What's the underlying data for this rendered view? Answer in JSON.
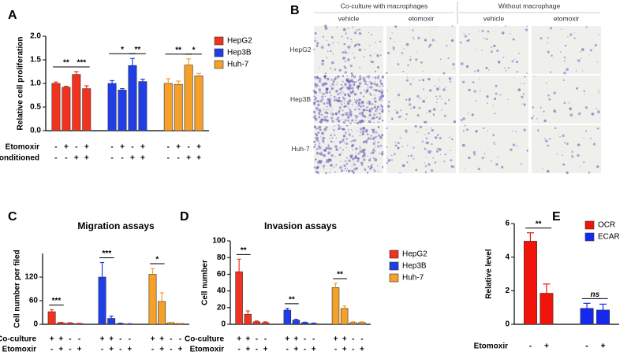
{
  "micrographs": {
    "label": "B",
    "groups": [
      "Co-culture with macrophages",
      "Without macrophage"
    ],
    "columns": [
      "vehicle",
      "etomoxir",
      "vehicle",
      "etomoxir"
    ],
    "rows": [
      "HepG2",
      "Hep3B",
      "Huh-7"
    ]
  },
  "chart_data": [
    {
      "type": "bar",
      "label": "A",
      "ylabel": "Relative cell proliferation",
      "ylim": [
        0,
        2
      ],
      "yticks": [
        {
          "value": 0,
          "label": "0.0"
        },
        0.5,
        {
          "value": 1,
          "label": "1.0"
        },
        1.5,
        {
          "value": 2,
          "label": "2.0"
        }
      ],
      "legend": "right",
      "series": [
        {
          "name": "HepG2",
          "color": "#f0321e",
          "values": [
            1.0,
            0.92,
            1.19,
            0.89
          ],
          "errors": [
            0.03,
            0.02,
            0.06,
            0.06
          ]
        },
        {
          "name": "Hep3B",
          "color": "#1f3ee6",
          "values": [
            1.0,
            0.86,
            1.38,
            1.04
          ],
          "errors": [
            0.06,
            0.03,
            0.15,
            0.05
          ]
        },
        {
          "name": "Huh-7",
          "color": "#f5a028",
          "values": [
            1.0,
            0.98,
            1.39,
            1.16
          ],
          "errors": [
            0.1,
            0.07,
            0.13,
            0.05
          ]
        }
      ],
      "conditions": [
        {
          "name": "Etomoxir",
          "signs": [
            "-",
            "+",
            "-",
            "+"
          ]
        },
        {
          "name": "Conditioned",
          "signs": [
            "-",
            "-",
            "+",
            "+"
          ]
        }
      ],
      "significance": [
        {
          "label": "**",
          "series": 0,
          "between": [
            0,
            2
          ]
        },
        {
          "label": "***",
          "series": 0,
          "between": [
            2,
            3
          ]
        },
        {
          "label": "*",
          "series": 1,
          "between": [
            0,
            2
          ]
        },
        {
          "label": "**",
          "series": 1,
          "between": [
            2,
            3
          ]
        },
        {
          "label": "**",
          "series": 2,
          "between": [
            0,
            2
          ]
        },
        {
          "label": "*",
          "series": 2,
          "between": [
            2,
            3
          ]
        }
      ]
    },
    {
      "type": "bar",
      "label": "C",
      "title": "Migration assays",
      "ylabel": "Cell number per filed",
      "ylim": [
        0,
        180
      ],
      "yticks": [
        0,
        60,
        120
      ],
      "series": [
        {
          "color": "#f0321e",
          "values": [
            32,
            4,
            3,
            2
          ],
          "errors": [
            5,
            1,
            1,
            0.5
          ]
        },
        {
          "color": "#1f3ee6",
          "values": [
            120,
            15,
            2,
            1
          ],
          "errors": [
            37,
            6,
            1,
            0.5
          ]
        },
        {
          "color": "#f5a028",
          "values": [
            127,
            58,
            4,
            2
          ],
          "errors": [
            15,
            22,
            1,
            0.5
          ]
        }
      ],
      "conditions": [
        {
          "name": "Co-culture",
          "signs": [
            "+",
            "+",
            "-",
            "-"
          ]
        },
        {
          "name": "Etomoxir",
          "signs": [
            "-",
            "+",
            "-",
            "+"
          ]
        }
      ],
      "significance": [
        {
          "label": "***",
          "series": 0,
          "between": [
            0,
            1
          ]
        },
        {
          "label": "***",
          "series": 1,
          "between": [
            0,
            1
          ]
        },
        {
          "label": "*",
          "series": 2,
          "between": [
            0,
            1
          ]
        }
      ]
    },
    {
      "type": "bar",
      "label": "D",
      "title": "Invasion assays",
      "ylabel": "Cell number",
      "ylim": [
        0,
        100
      ],
      "yticks": [
        0,
        20,
        40,
        60,
        80,
        100
      ],
      "legend": "right",
      "series": [
        {
          "name": "HepG2",
          "color": "#f0321e",
          "values": [
            63,
            12,
            3,
            2
          ],
          "errors": [
            15,
            4,
            1,
            1
          ]
        },
        {
          "name": "Hep3B",
          "color": "#1f3ee6",
          "values": [
            17,
            5,
            2,
            1
          ],
          "errors": [
            2,
            1,
            0.5,
            0.5
          ]
        },
        {
          "name": "Huh-7",
          "color": "#f5a028",
          "values": [
            44,
            19,
            2,
            2
          ],
          "errors": [
            5,
            3,
            1,
            1
          ]
        }
      ],
      "conditions": [
        {
          "name": "Co-culture",
          "signs": [
            "+",
            "+",
            "-",
            "-"
          ]
        },
        {
          "name": "Etomoxir",
          "signs": [
            "-",
            "+",
            "-",
            "+"
          ]
        }
      ],
      "significance": [
        {
          "label": "**",
          "series": 0,
          "between": [
            0,
            1
          ]
        },
        {
          "label": "**",
          "series": 1,
          "between": [
            0,
            1
          ]
        },
        {
          "label": "**",
          "series": 2,
          "between": [
            0,
            1
          ]
        }
      ]
    },
    {
      "type": "bar",
      "label": "E",
      "ylabel": "Relative level",
      "ylim": [
        0,
        6
      ],
      "yticks": [
        0,
        2,
        4,
        6
      ],
      "legend": "top-right",
      "series": [
        {
          "name": "OCR",
          "color": "#f0140a",
          "values": [
            4.95,
            1.85
          ],
          "errors": [
            0.5,
            0.55
          ]
        },
        {
          "name": "ECAR",
          "color": "#1428f0",
          "values": [
            0.95,
            0.85
          ],
          "errors": [
            0.3,
            0.35
          ]
        }
      ],
      "conditions": [
        {
          "name": "Etomoxir",
          "signs": [
            "-",
            "+",
            "-",
            "+"
          ]
        }
      ],
      "significance": [
        {
          "label": "**",
          "series": 0,
          "between": [
            0,
            1
          ]
        },
        {
          "label": "ns",
          "series": 1,
          "between": [
            0,
            1
          ]
        }
      ]
    }
  ]
}
